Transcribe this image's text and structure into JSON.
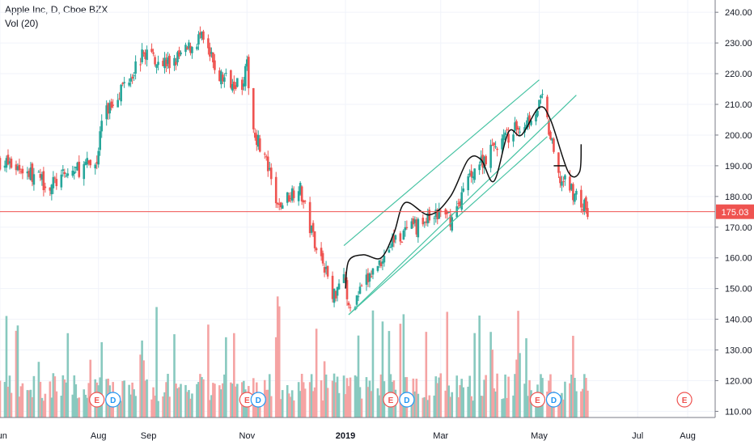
{
  "chart_data": {
    "type": "candlestick",
    "title": "Apple Inc, D, Cboe BZX",
    "indicator": "Vol (20)",
    "last_price_label": "175.03",
    "last_price": 175.03,
    "ylim": [
      108,
      244
    ],
    "y_ticks": [
      110,
      120,
      130,
      140,
      150,
      160,
      170,
      180,
      190,
      200,
      210,
      220,
      230,
      240
    ],
    "y_tick_labels": [
      "110.00",
      "120.00",
      "130.00",
      "140.00",
      "150.00",
      "160.00",
      "170.00",
      "180.00",
      "190.00",
      "200.00",
      "210.00",
      "220.00",
      "230.00",
      "240.00"
    ],
    "x_labels": [
      {
        "date": "2018-06-01",
        "label": "Jun"
      },
      {
        "date": "2018-08-01",
        "label": "Aug"
      },
      {
        "date": "2018-09-01",
        "label": "Sep"
      },
      {
        "date": "2018-11-01",
        "label": "Nov"
      },
      {
        "date": "2019-01-01",
        "label": "2019"
      },
      {
        "date": "2019-03-01",
        "label": "Mar"
      },
      {
        "date": "2019-05-01",
        "label": "May"
      },
      {
        "date": "2019-07-01",
        "label": "Jul"
      },
      {
        "date": "2019-08-01",
        "label": "Aug"
      }
    ],
    "x_range": [
      "2018-06-01",
      "2019-08-18"
    ],
    "price_path": [
      {
        "date": "2018-06-01",
        "close": 191.5
      },
      {
        "date": "2018-06-15",
        "close": 189.0
      },
      {
        "date": "2018-07-02",
        "close": 183.5
      },
      {
        "date": "2018-07-17",
        "close": 188.5
      },
      {
        "date": "2018-07-31",
        "close": 191.0
      },
      {
        "date": "2018-08-03",
        "close": 205.0
      },
      {
        "date": "2018-08-17",
        "close": 217.0
      },
      {
        "date": "2018-08-30",
        "close": 227.0
      },
      {
        "date": "2018-09-14",
        "close": 223.0
      },
      {
        "date": "2018-09-24",
        "close": 227.0
      },
      {
        "date": "2018-10-03",
        "close": 232.0
      },
      {
        "date": "2018-10-15",
        "close": 219.0
      },
      {
        "date": "2018-10-29",
        "close": 217.0
      },
      {
        "date": "2018-11-01",
        "close": 222.0
      },
      {
        "date": "2018-11-05",
        "close": 202.0
      },
      {
        "date": "2018-11-12",
        "close": 193.0
      },
      {
        "date": "2018-11-20",
        "close": 176.0
      },
      {
        "date": "2018-12-03",
        "close": 184.0
      },
      {
        "date": "2018-12-10",
        "close": 170.0
      },
      {
        "date": "2018-12-20",
        "close": 156.0
      },
      {
        "date": "2018-12-24",
        "close": 146.5
      },
      {
        "date": "2018-12-31",
        "close": 157.0
      },
      {
        "date": "2019-01-03",
        "close": 142.5
      },
      {
        "date": "2019-01-15",
        "close": 153.0
      },
      {
        "date": "2019-01-31",
        "close": 166.0
      },
      {
        "date": "2019-02-15",
        "close": 170.5
      },
      {
        "date": "2019-03-01",
        "close": 174.5
      },
      {
        "date": "2019-03-08",
        "close": 172.5
      },
      {
        "date": "2019-03-20",
        "close": 188.0
      },
      {
        "date": "2019-04-05",
        "close": 197.0
      },
      {
        "date": "2019-04-22",
        "close": 204.0
      },
      {
        "date": "2019-04-30",
        "close": 209.0
      },
      {
        "date": "2019-05-03",
        "close": 211.5
      },
      {
        "date": "2019-05-13",
        "close": 186.0
      },
      {
        "date": "2019-05-20",
        "close": 183.0
      },
      {
        "date": "2019-05-31",
        "close": 175.0
      }
    ],
    "volume_scale_note": "Volume pane shown without its own scale",
    "event_markers": [
      {
        "date": "2018-07-31",
        "label": "E",
        "kind": "earnings"
      },
      {
        "date": "2018-08-10",
        "label": "D",
        "kind": "dividend"
      },
      {
        "date": "2018-11-01",
        "label": "E",
        "kind": "earnings"
      },
      {
        "date": "2018-11-08",
        "label": "D",
        "kind": "dividend"
      },
      {
        "date": "2019-01-29",
        "label": "E",
        "kind": "earnings"
      },
      {
        "date": "2019-02-08",
        "label": "D",
        "kind": "dividend"
      },
      {
        "date": "2019-04-30",
        "label": "E",
        "kind": "earnings"
      },
      {
        "date": "2019-05-10",
        "label": "D",
        "kind": "dividend"
      },
      {
        "date": "2019-07-30",
        "label": "E",
        "kind": "earnings"
      }
    ],
    "annotations": {
      "channel_lower": [
        {
          "date": "2019-01-03",
          "price": 141.5
        },
        {
          "date": "2019-05-24",
          "price": 213.0
        }
      ],
      "channel_upper": [
        {
          "date": "2018-12-31",
          "price": 164.0
        },
        {
          "date": "2019-05-01",
          "price": 218.0
        }
      ],
      "channel_middle": [
        {
          "date": "2019-05-01",
          "price": 201.0
        },
        {
          "date": "2019-05-05",
          "price": 199.0
        }
      ],
      "wave_curve": [
        {
          "date": "2019-01-01",
          "price": 150.0
        },
        {
          "date": "2019-01-03",
          "price": 159.0
        },
        {
          "date": "2019-01-12",
          "price": 161.0
        },
        {
          "date": "2019-01-23",
          "price": 160.0
        },
        {
          "date": "2019-01-31",
          "price": 168.0
        },
        {
          "date": "2019-02-07",
          "price": 178.0
        },
        {
          "date": "2019-02-22",
          "price": 174.0
        },
        {
          "date": "2019-03-07",
          "price": 180.0
        },
        {
          "date": "2019-03-18",
          "price": 192.0
        },
        {
          "date": "2019-03-26",
          "price": 192.0
        },
        {
          "date": "2019-04-03",
          "price": 185.0
        },
        {
          "date": "2019-04-12",
          "price": 201.0
        },
        {
          "date": "2019-04-20",
          "price": 200.0
        },
        {
          "date": "2019-05-01",
          "price": 209.0
        },
        {
          "date": "2019-05-08",
          "price": 205.0
        },
        {
          "date": "2019-05-19",
          "price": 188.0
        },
        {
          "date": "2019-05-26",
          "price": 188.0
        },
        {
          "date": "2019-05-27",
          "price": 197.0
        }
      ],
      "small_marker": [
        {
          "date": "2019-05-10",
          "price": 190.0
        },
        {
          "date": "2019-05-17",
          "price": 190.0
        }
      ]
    },
    "colors": {
      "up": "#26a69a",
      "down": "#ef5350",
      "volume_up": "#88c9bf",
      "volume_down": "#f5a3a3",
      "channel": "#46c3a3",
      "wave": "#111111",
      "last_price_line": "#ef5350",
      "grid": "#f0f3fa",
      "axis_text": "#131722"
    }
  }
}
